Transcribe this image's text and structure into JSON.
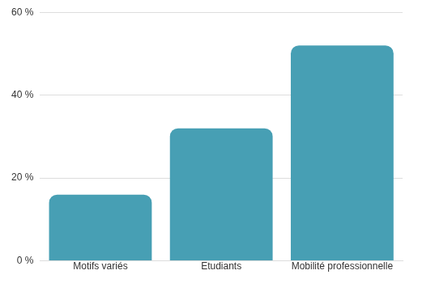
{
  "chart_data": {
    "type": "bar",
    "categories": [
      "Motifs variés",
      "Etudiants",
      "Mobilité professionnelle"
    ],
    "values": [
      16,
      32,
      52
    ],
    "color": "#479fb4",
    "ylim": [
      0,
      60
    ],
    "yticks": [
      {
        "value": 0,
        "label": "0 %"
      },
      {
        "value": 20,
        "label": "20 %"
      },
      {
        "value": 40,
        "label": "40 %"
      },
      {
        "value": 60,
        "label": "60 %"
      }
    ],
    "grid": true
  }
}
